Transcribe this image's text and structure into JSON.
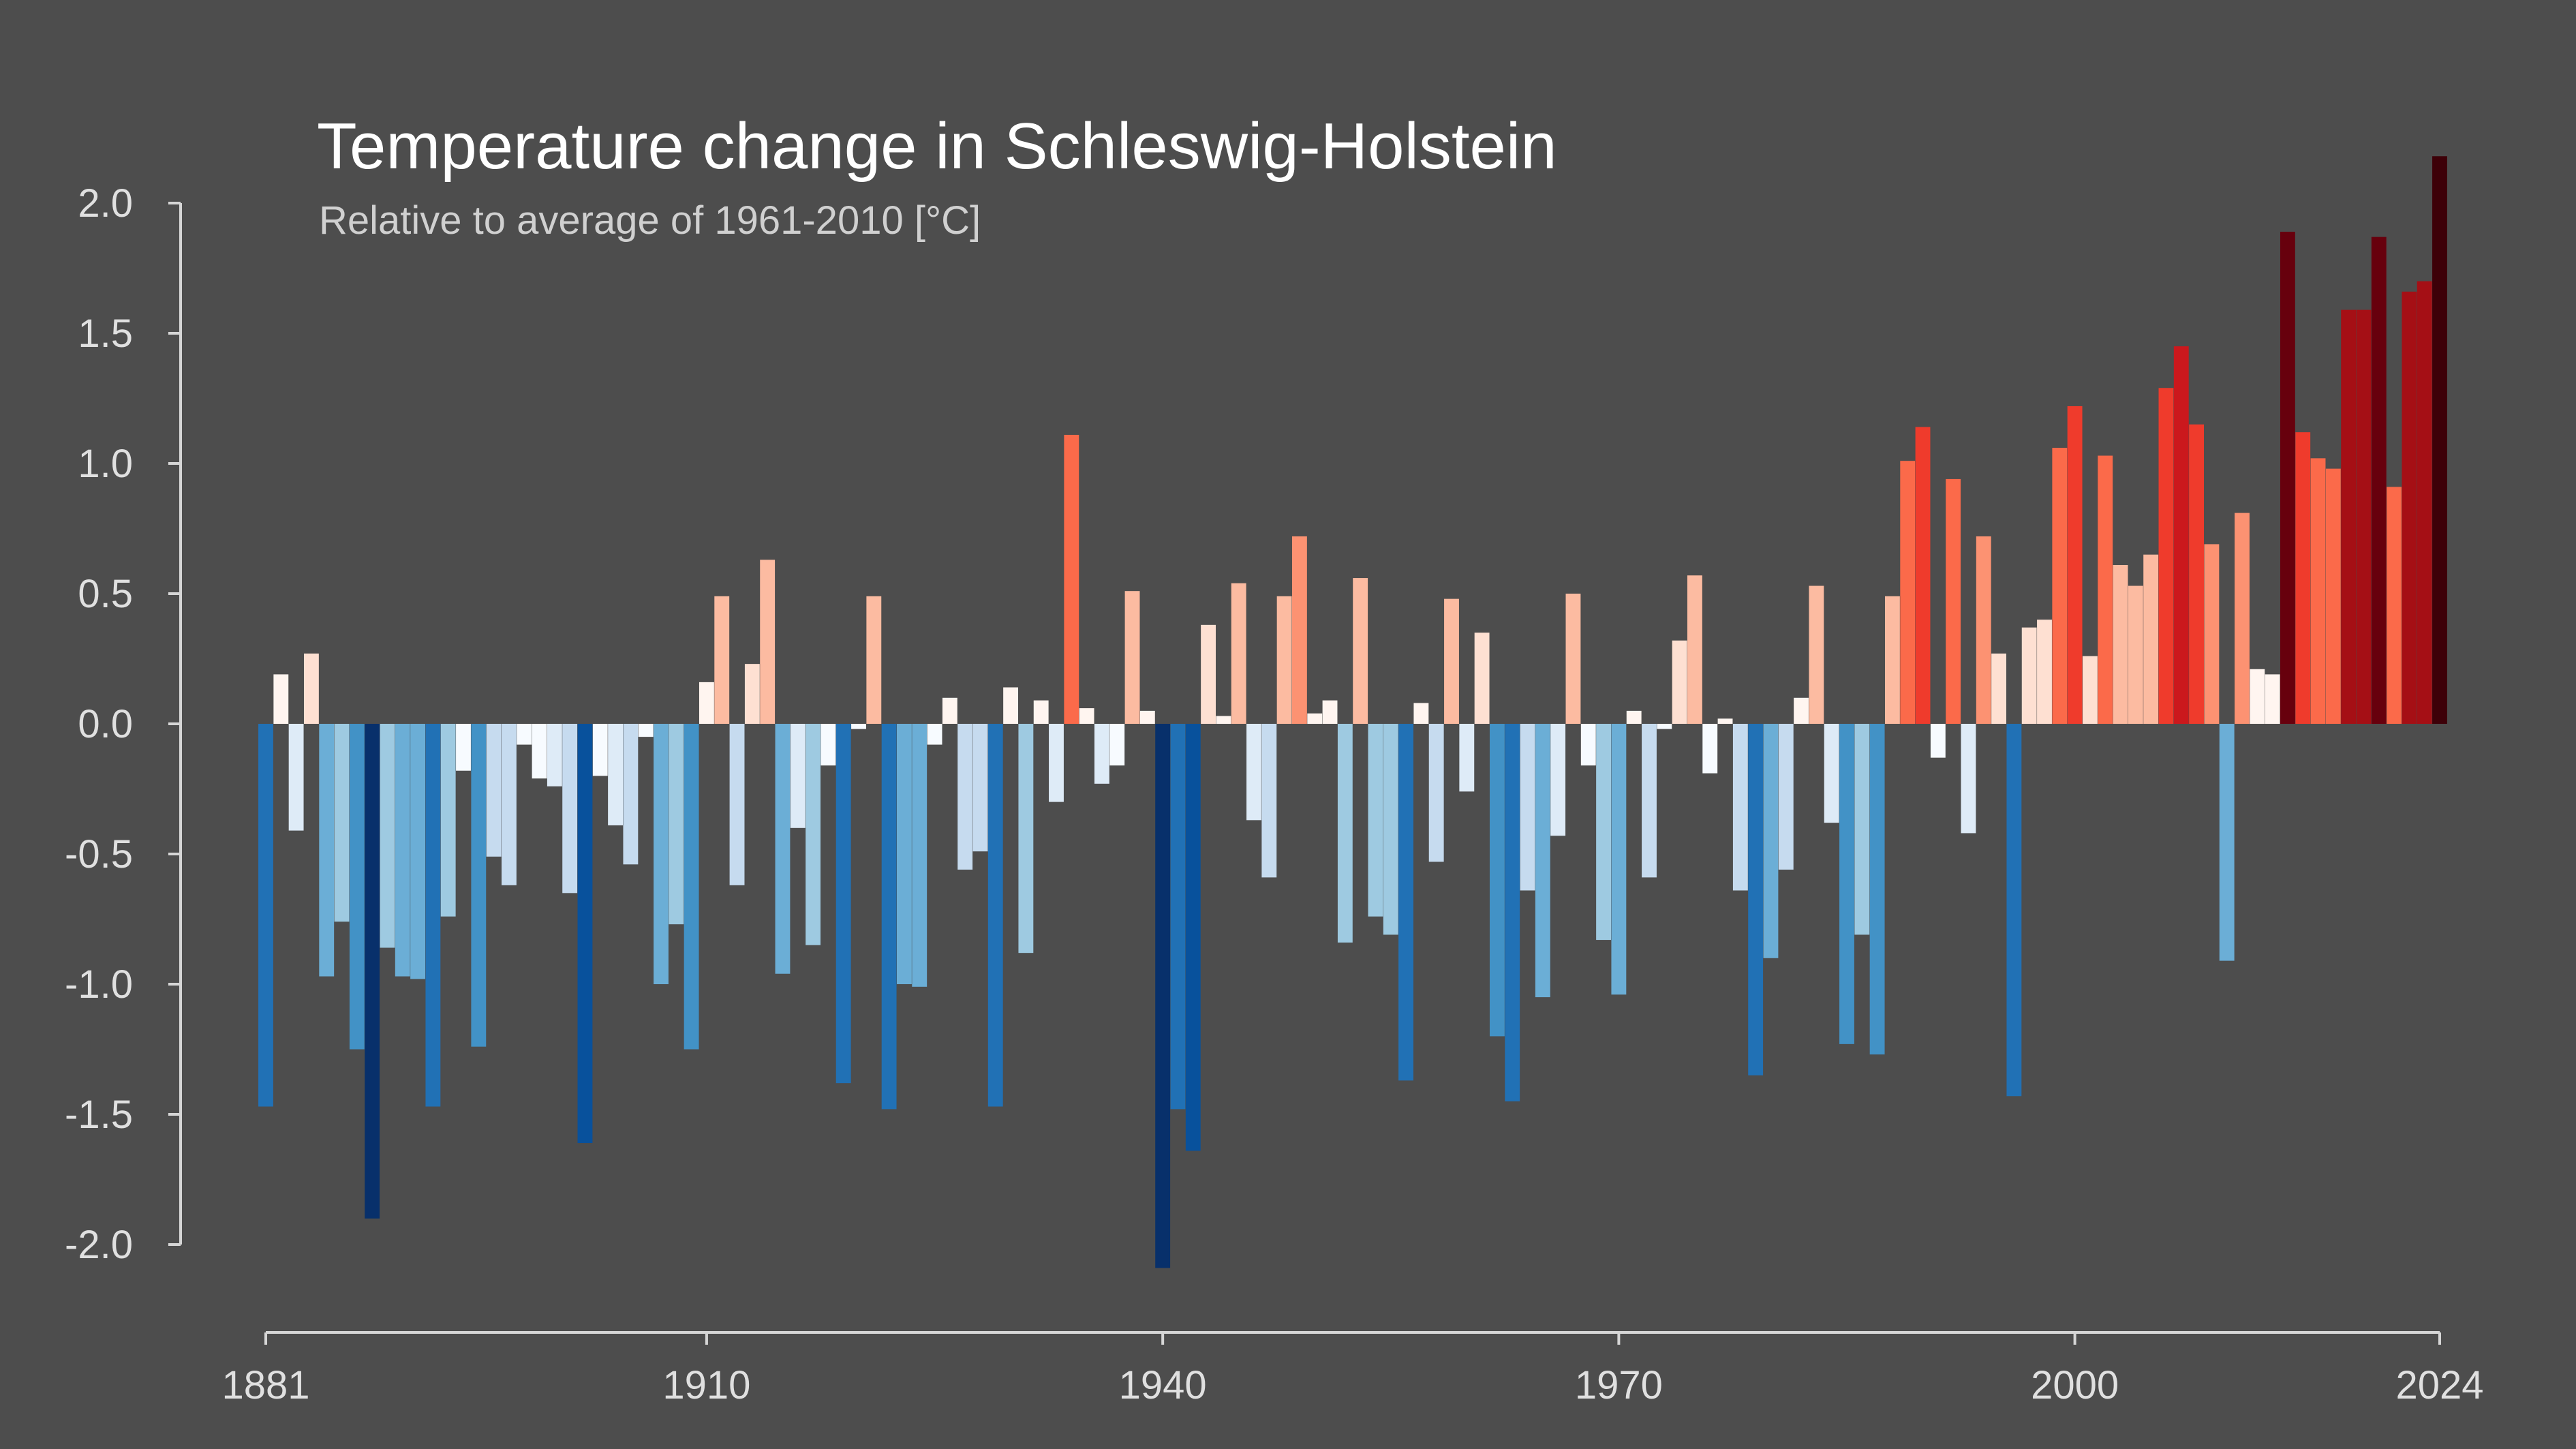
{
  "chart_data": {
    "type": "bar",
    "title": "Temperature change in Schleswig-Holstein",
    "subtitle": "Relative to average of 1961-2010  [°C]",
    "xlabel": "",
    "ylabel": "",
    "x_start": 1881,
    "x_end": 2024,
    "x_ticks": [
      "1881",
      "1910",
      "1940",
      "1970",
      "2000",
      "2024"
    ],
    "y_ticks": [
      "2.0",
      "1.5",
      "1.0",
      "0.5",
      "0.0",
      "-0.5",
      "-1.0",
      "-1.5",
      "-2.0"
    ],
    "ylim": [
      -2.1,
      2.2
    ],
    "grid": false,
    "legend": "none",
    "colors": {
      "background": "#4d4d4d",
      "text": "#ffffff",
      "subtext": "#d0d0d0",
      "axis": "#d6d6d6"
    },
    "values": [
      -1.47,
      0.19,
      -0.41,
      0.27,
      -0.97,
      -0.76,
      -1.25,
      -1.9,
      -0.86,
      -0.97,
      -0.98,
      -1.47,
      -0.74,
      -0.18,
      -1.24,
      -0.51,
      -0.62,
      -0.08,
      -0.21,
      -0.24,
      -0.65,
      -1.61,
      -0.2,
      -0.39,
      -0.54,
      -0.05,
      -1.0,
      -0.77,
      -1.25,
      0.16,
      0.49,
      -0.62,
      0.23,
      0.63,
      -0.96,
      -0.4,
      -0.85,
      -0.16,
      -1.38,
      -0.02,
      0.49,
      -1.48,
      -1.0,
      -1.01,
      -0.08,
      0.1,
      -0.56,
      -0.49,
      -1.47,
      0.14,
      -0.88,
      0.09,
      -0.3,
      1.11,
      0.06,
      -0.23,
      -0.16,
      0.51,
      0.05,
      -2.09,
      -1.48,
      -1.64,
      0.38,
      0.03,
      0.54,
      -0.37,
      -0.59,
      0.49,
      0.72,
      0.04,
      0.09,
      -0.84,
      0.56,
      -0.74,
      -0.81,
      -1.37,
      0.08,
      -0.53,
      0.48,
      -0.26,
      0.35,
      -1.2,
      -1.45,
      -0.64,
      -1.05,
      -0.43,
      0.5,
      -0.16,
      -0.83,
      -1.04,
      0.05,
      -0.59,
      -0.02,
      0.32,
      0.57,
      -0.19,
      0.02,
      -0.64,
      -1.35,
      -0.9,
      -0.56,
      0.1,
      0.53,
      -0.38,
      -1.23,
      -0.81,
      -1.27,
      0.49,
      1.01,
      1.14,
      -0.13,
      0.94,
      -0.42,
      0.72,
      0.27,
      -1.43,
      0.37,
      0.4,
      1.06,
      1.22,
      0.26,
      1.03,
      0.61,
      0.53,
      0.65,
      1.29,
      1.45,
      1.15,
      0.69,
      -0.91,
      0.81,
      0.21,
      0.19,
      1.89,
      1.12,
      1.02,
      0.98,
      1.59,
      1.59,
      1.87,
      0.91,
      1.66,
      1.7,
      2.18
    ]
  }
}
